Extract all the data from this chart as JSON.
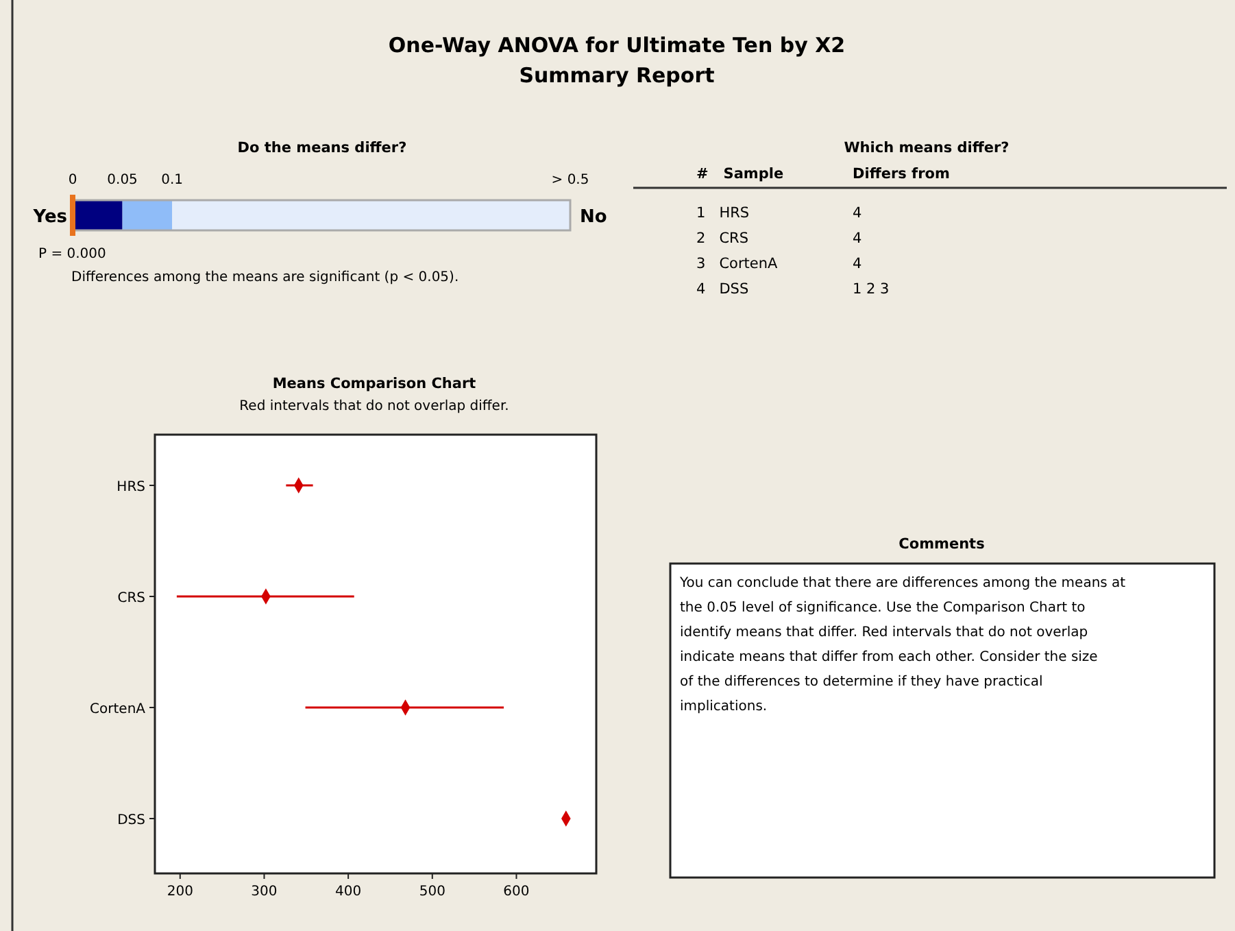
{
  "chart_data": [
    {
      "type": "other",
      "title": "One-Way ANOVA for Ultimate Ten by X2",
      "subtitle": "Summary Report"
    },
    {
      "type": "bar",
      "title": "Do the means differ?",
      "orientation": "horizontal",
      "stacked": true,
      "categories": [
        null
      ],
      "xlim": [
        0,
        0.5
      ],
      "xticks": [
        0,
        0.05,
        0.1,
        {
          "value": 0.5,
          "label": "> 0.5"
        }
      ],
      "series": [
        {
          "color": "#000080",
          "values": [
            0.05
          ]
        },
        {
          "color": "#8fbcf8",
          "values": [
            0.05
          ]
        },
        {
          "color": "#e4edfb",
          "values": [
            0.4
          ]
        }
      ],
      "ref_lines": [
        {
          "axis": "x",
          "value": 0,
          "label": "P = 0.000",
          "color": "#e8731e"
        }
      ],
      "annotations": [
        "Yes",
        "No",
        "Differences among the means are significant (p < 0.05)."
      ]
    },
    {
      "type": "other",
      "title": "Which means differ?",
      "annotations": [
        "#",
        "Sample",
        "Differs from",
        "1",
        "HRS",
        "4",
        "2",
        "CRS",
        "4",
        "3",
        "CortenA",
        "4",
        "4",
        "DSS",
        "1   2   3"
      ]
    },
    {
      "type": "scatter",
      "title": "Means Comparison Chart",
      "subtitle": "Red intervals that do not overlap differ.",
      "orientation": "horizontal",
      "categories": [
        "HRS",
        "CRS",
        "CortenA",
        "DSS"
      ],
      "values": [
        341,
        302,
        468,
        659
      ],
      "errors": [
        [
          326,
          358
        ],
        [
          196,
          407
        ],
        [
          349,
          585
        ],
        null
      ],
      "color": "#d40000",
      "marker": "diamond",
      "xlim": [
        170,
        695
      ],
      "xticks": [
        200,
        300,
        400,
        500,
        600
      ]
    },
    {
      "type": "other",
      "title": "Comments",
      "annotations": [
        "You can conclude that there are differences among the means at the 0.05 level of significance. Use the Comparison Chart to identify means that differ. Red intervals that do not overlap indicate means that differ from each other. Consider the size of the differences to determine if they have practical implications."
      ]
    }
  ]
}
